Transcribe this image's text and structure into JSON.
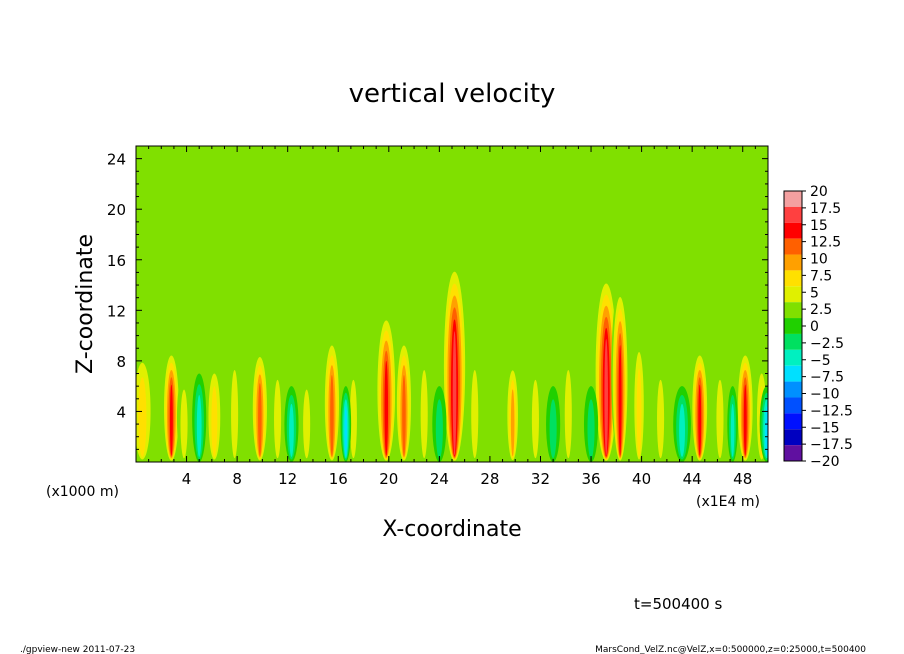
{
  "chart_data": {
    "type": "heatmap",
    "title": "vertical velocity",
    "xlabel": "X-coordinate",
    "ylabel": "Z-coordinate",
    "x_unit_left": "(x1000 m)",
    "x_unit_right": "(x1E4 m)",
    "xlim": [
      0,
      50
    ],
    "ylim": [
      0,
      25
    ],
    "xticks": [
      4,
      8,
      12,
      16,
      20,
      24,
      28,
      32,
      36,
      40,
      44,
      48
    ],
    "xtick_labels": [
      "4",
      "8",
      "12",
      "16",
      "20",
      "24",
      "28",
      "32",
      "36",
      "40",
      "44",
      "48"
    ],
    "yticks": [
      4,
      8,
      12,
      16,
      20,
      24
    ],
    "ytick_labels": [
      "4",
      "8",
      "12",
      "16",
      "20",
      "24"
    ],
    "colorbar": {
      "levels": [
        20,
        17.5,
        15,
        12.5,
        10,
        7.5,
        5,
        2.5,
        0,
        -2.5,
        -5,
        -7.5,
        -10,
        -12.5,
        -15,
        -17.5,
        -20
      ],
      "labels": [
        "20",
        "17.5",
        "15",
        "12.5",
        "10",
        "7.5",
        "5",
        "2.5",
        "0",
        "−2.5",
        "−5",
        "−7.5",
        "−10",
        "−12.5",
        "−15",
        "−17.5",
        "−20"
      ],
      "colors": [
        "#f4a0a0",
        "#ff4040",
        "#ff0000",
        "#ff6000",
        "#ffa000",
        "#ffe000",
        "#e0f000",
        "#80e000",
        "#20d000",
        "#00e060",
        "#00f0c0",
        "#00e0ff",
        "#0090ff",
        "#0050ff",
        "#0010ff",
        "#0000c0",
        "#6010a0"
      ]
    },
    "background_value": 0,
    "updraft_columns": [
      {
        "x": 0.5,
        "w": 0.7,
        "peak": 9,
        "top": 9
      },
      {
        "x": 2.8,
        "w": 0.5,
        "peak": 17,
        "top": 9
      },
      {
        "x": 3.8,
        "w": 0.4,
        "peak": 6,
        "top": 7
      },
      {
        "x": 6.2,
        "w": 0.5,
        "peak": 8,
        "top": 8
      },
      {
        "x": 7.8,
        "w": 0.4,
        "peak": 7,
        "top": 9
      },
      {
        "x": 9.8,
        "w": 0.5,
        "peak": 14,
        "top": 9
      },
      {
        "x": 11.2,
        "w": 0.4,
        "peak": 7,
        "top": 8
      },
      {
        "x": 13.5,
        "w": 0.4,
        "peak": 6,
        "top": 7
      },
      {
        "x": 15.5,
        "w": 0.5,
        "peak": 13,
        "top": 10
      },
      {
        "x": 17.2,
        "w": 0.4,
        "peak": 7,
        "top": 8
      },
      {
        "x": 19.8,
        "w": 0.6,
        "peak": 16,
        "top": 12
      },
      {
        "x": 21.2,
        "w": 0.5,
        "peak": 14,
        "top": 10
      },
      {
        "x": 22.8,
        "w": 0.4,
        "peak": 7,
        "top": 9
      },
      {
        "x": 25.2,
        "w": 0.7,
        "peak": 18,
        "top": 16
      },
      {
        "x": 26.8,
        "w": 0.4,
        "peak": 7,
        "top": 9
      },
      {
        "x": 29.8,
        "w": 0.4,
        "peak": 10,
        "top": 8
      },
      {
        "x": 31.6,
        "w": 0.4,
        "peak": 6,
        "top": 8
      },
      {
        "x": 34.2,
        "w": 0.4,
        "peak": 7,
        "top": 9
      },
      {
        "x": 37.2,
        "w": 0.7,
        "peak": 18,
        "top": 15
      },
      {
        "x": 38.3,
        "w": 0.5,
        "peak": 16,
        "top": 14
      },
      {
        "x": 39.8,
        "w": 0.4,
        "peak": 8,
        "top": 10
      },
      {
        "x": 41.5,
        "w": 0.4,
        "peak": 7,
        "top": 8
      },
      {
        "x": 44.6,
        "w": 0.5,
        "peak": 15,
        "top": 9
      },
      {
        "x": 46.2,
        "w": 0.4,
        "peak": 7,
        "top": 8
      },
      {
        "x": 48.2,
        "w": 0.5,
        "peak": 16,
        "top": 9
      },
      {
        "x": 49.5,
        "w": 0.4,
        "peak": 8,
        "top": 8
      }
    ],
    "downdraft_columns": [
      {
        "x": 5.0,
        "w": 0.4,
        "peak": -9,
        "top": 7
      },
      {
        "x": 12.3,
        "w": 0.4,
        "peak": -8,
        "top": 6
      },
      {
        "x": 16.6,
        "w": 0.3,
        "peak": -10,
        "top": 6
      },
      {
        "x": 24.0,
        "w": 0.4,
        "peak": -7,
        "top": 6
      },
      {
        "x": 33.0,
        "w": 0.4,
        "peak": -6,
        "top": 6
      },
      {
        "x": 36.0,
        "w": 0.4,
        "peak": -6,
        "top": 6
      },
      {
        "x": 43.2,
        "w": 0.5,
        "peak": -9,
        "top": 6
      },
      {
        "x": 47.2,
        "w": 0.3,
        "peak": -8,
        "top": 6
      },
      {
        "x": 49.9,
        "w": 0.4,
        "peak": -12,
        "top": 6
      }
    ]
  },
  "time_label": "t=500400 s",
  "footer_left": "./gpview-new  2011-07-23",
  "footer_right": "MarsCond_VelZ.nc@VelZ,x=0:500000,z=0:25000,t=500400"
}
